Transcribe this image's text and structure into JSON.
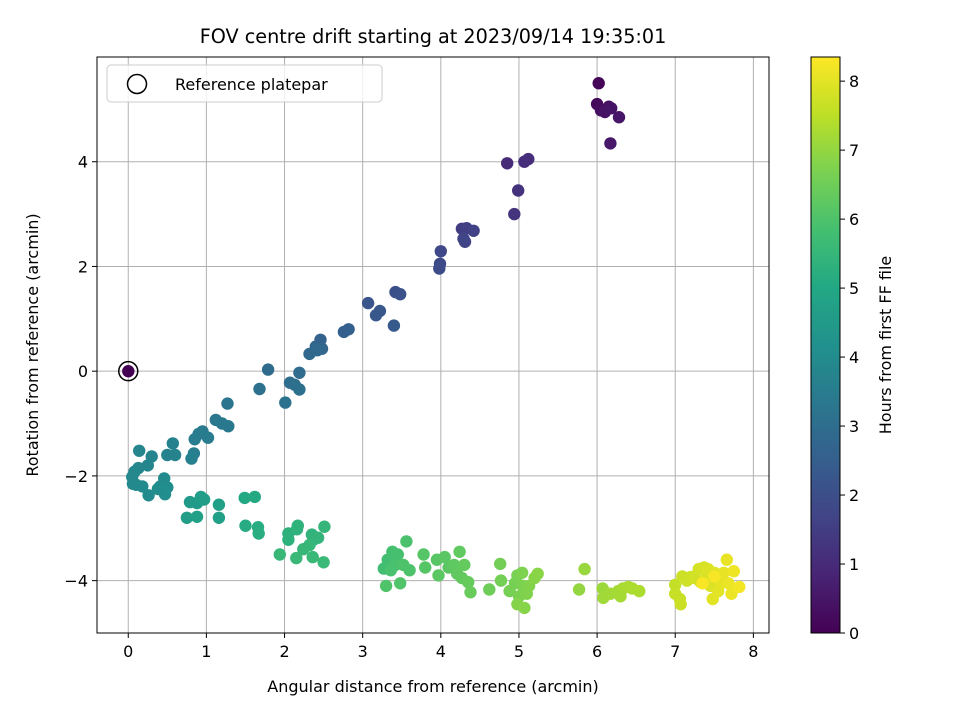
{
  "chart_data": {
    "type": "scatter",
    "title": "FOV centre drift starting at 2023/09/14 19:35:01",
    "xlabel": "Angular distance from reference (arcmin)",
    "ylabel": "Rotation from reference (arcmin)",
    "xlim": [
      -0.4,
      8.2
    ],
    "ylim": [
      -5.0,
      6.0
    ],
    "xticks": [
      0,
      1,
      2,
      3,
      4,
      5,
      6,
      7,
      8
    ],
    "yticks": [
      -4,
      -2,
      0,
      2,
      4
    ],
    "grid": true,
    "legend": {
      "placement": "top-left",
      "entries": [
        "Reference platepar"
      ]
    },
    "reference_point": {
      "x": 0,
      "y": 0,
      "hours": 0
    },
    "colorbar": {
      "label": "Hours from first FF file",
      "min": 0,
      "max": 8.35,
      "ticks": [
        0,
        1,
        2,
        3,
        4,
        5,
        6,
        7,
        8
      ],
      "colormap": "viridis"
    },
    "points": [
      {
        "x": 0.0,
        "y": 0.0,
        "h": 0.0
      },
      {
        "x": 6.02,
        "y": 5.5,
        "h": 0.1
      },
      {
        "x": 6.0,
        "y": 5.1,
        "h": 0.2
      },
      {
        "x": 6.05,
        "y": 4.98,
        "h": 0.3
      },
      {
        "x": 6.15,
        "y": 5.05,
        "h": 0.35
      },
      {
        "x": 6.1,
        "y": 4.95,
        "h": 0.4
      },
      {
        "x": 6.18,
        "y": 5.02,
        "h": 0.45
      },
      {
        "x": 6.28,
        "y": 4.85,
        "h": 0.5
      },
      {
        "x": 6.17,
        "y": 4.35,
        "h": 0.55
      },
      {
        "x": 4.85,
        "y": 3.97,
        "h": 1.0
      },
      {
        "x": 5.07,
        "y": 4.0,
        "h": 1.05
      },
      {
        "x": 5.12,
        "y": 4.05,
        "h": 1.1
      },
      {
        "x": 4.99,
        "y": 3.45,
        "h": 1.2
      },
      {
        "x": 4.94,
        "y": 3.0,
        "h": 1.25
      },
      {
        "x": 4.27,
        "y": 2.72,
        "h": 1.5
      },
      {
        "x": 4.33,
        "y": 2.73,
        "h": 1.55
      },
      {
        "x": 4.42,
        "y": 2.68,
        "h": 1.6
      },
      {
        "x": 4.31,
        "y": 2.47,
        "h": 1.65
      },
      {
        "x": 4.29,
        "y": 2.53,
        "h": 1.7
      },
      {
        "x": 4.0,
        "y": 2.29,
        "h": 1.8
      },
      {
        "x": 3.99,
        "y": 2.05,
        "h": 1.85
      },
      {
        "x": 3.98,
        "y": 1.96,
        "h": 1.9
      },
      {
        "x": 3.42,
        "y": 1.51,
        "h": 2.05
      },
      {
        "x": 3.48,
        "y": 1.47,
        "h": 2.1
      },
      {
        "x": 3.07,
        "y": 1.3,
        "h": 2.2
      },
      {
        "x": 3.17,
        "y": 1.07,
        "h": 2.25
      },
      {
        "x": 3.22,
        "y": 1.15,
        "h": 2.3
      },
      {
        "x": 3.4,
        "y": 0.87,
        "h": 2.35
      },
      {
        "x": 2.76,
        "y": 0.75,
        "h": 2.5
      },
      {
        "x": 2.82,
        "y": 0.8,
        "h": 2.55
      },
      {
        "x": 2.46,
        "y": 0.6,
        "h": 2.65
      },
      {
        "x": 2.4,
        "y": 0.47,
        "h": 2.7
      },
      {
        "x": 2.48,
        "y": 0.43,
        "h": 2.75
      },
      {
        "x": 2.32,
        "y": 0.33,
        "h": 2.8
      },
      {
        "x": 2.42,
        "y": 0.4,
        "h": 2.82
      },
      {
        "x": 1.79,
        "y": 0.03,
        "h": 2.9
      },
      {
        "x": 2.19,
        "y": -0.03,
        "h": 2.95
      },
      {
        "x": 2.07,
        "y": -0.22,
        "h": 3.0
      },
      {
        "x": 2.13,
        "y": -0.26,
        "h": 3.05
      },
      {
        "x": 2.19,
        "y": -0.35,
        "h": 3.08
      },
      {
        "x": 1.68,
        "y": -0.34,
        "h": 3.1
      },
      {
        "x": 2.01,
        "y": -0.6,
        "h": 3.15
      },
      {
        "x": 1.27,
        "y": -0.62,
        "h": 3.25
      },
      {
        "x": 1.12,
        "y": -0.93,
        "h": 3.3
      },
      {
        "x": 1.2,
        "y": -1.0,
        "h": 3.32
      },
      {
        "x": 1.28,
        "y": -1.05,
        "h": 3.35
      },
      {
        "x": 0.95,
        "y": -1.15,
        "h": 3.4
      },
      {
        "x": 1.02,
        "y": -1.27,
        "h": 3.45
      },
      {
        "x": 0.9,
        "y": -1.2,
        "h": 3.48
      },
      {
        "x": 0.85,
        "y": -1.3,
        "h": 3.5
      },
      {
        "x": 0.84,
        "y": -1.57,
        "h": 3.55
      },
      {
        "x": 0.81,
        "y": -1.67,
        "h": 3.6
      },
      {
        "x": 0.57,
        "y": -1.38,
        "h": 3.65
      },
      {
        "x": 0.5,
        "y": -1.6,
        "h": 3.7
      },
      {
        "x": 0.6,
        "y": -1.6,
        "h": 3.72
      },
      {
        "x": 0.3,
        "y": -1.63,
        "h": 3.75
      },
      {
        "x": 0.25,
        "y": -1.8,
        "h": 3.78
      },
      {
        "x": 0.14,
        "y": -1.52,
        "h": 3.8
      },
      {
        "x": 0.13,
        "y": -1.85,
        "h": 3.82
      },
      {
        "x": 0.08,
        "y": -1.92,
        "h": 3.85
      },
      {
        "x": 0.05,
        "y": -2.02,
        "h": 3.88
      },
      {
        "x": 0.06,
        "y": -2.15,
        "h": 3.9
      },
      {
        "x": 0.1,
        "y": -2.17,
        "h": 3.92
      },
      {
        "x": 0.18,
        "y": -2.2,
        "h": 3.95
      },
      {
        "x": 0.26,
        "y": -2.37,
        "h": 3.98
      },
      {
        "x": 0.46,
        "y": -2.05,
        "h": 4.0
      },
      {
        "x": 0.41,
        "y": -2.2,
        "h": 4.02
      },
      {
        "x": 0.5,
        "y": -2.22,
        "h": 4.05
      },
      {
        "x": 0.47,
        "y": -2.35,
        "h": 4.08
      },
      {
        "x": 0.38,
        "y": -2.25,
        "h": 4.1
      },
      {
        "x": 0.79,
        "y": -2.5,
        "h": 4.5
      },
      {
        "x": 0.88,
        "y": -2.52,
        "h": 4.55
      },
      {
        "x": 0.97,
        "y": -2.45,
        "h": 4.6
      },
      {
        "x": 0.93,
        "y": -2.4,
        "h": 4.62
      },
      {
        "x": 0.75,
        "y": -2.8,
        "h": 4.65
      },
      {
        "x": 0.88,
        "y": -2.78,
        "h": 4.68
      },
      {
        "x": 1.16,
        "y": -2.55,
        "h": 4.7
      },
      {
        "x": 1.16,
        "y": -2.8,
        "h": 4.72
      },
      {
        "x": 1.49,
        "y": -2.42,
        "h": 5.0
      },
      {
        "x": 1.62,
        "y": -2.4,
        "h": 5.05
      },
      {
        "x": 1.5,
        "y": -2.95,
        "h": 5.1
      },
      {
        "x": 1.66,
        "y": -2.98,
        "h": 5.15
      },
      {
        "x": 1.67,
        "y": -3.1,
        "h": 5.2
      },
      {
        "x": 2.05,
        "y": -3.1,
        "h": 5.3
      },
      {
        "x": 2.05,
        "y": -3.22,
        "h": 5.32
      },
      {
        "x": 2.16,
        "y": -3.02,
        "h": 5.35
      },
      {
        "x": 2.17,
        "y": -2.95,
        "h": 5.38
      },
      {
        "x": 2.35,
        "y": -3.12,
        "h": 5.4
      },
      {
        "x": 2.37,
        "y": -3.22,
        "h": 5.42
      },
      {
        "x": 2.43,
        "y": -3.18,
        "h": 5.45
      },
      {
        "x": 2.51,
        "y": -2.97,
        "h": 5.48
      },
      {
        "x": 2.32,
        "y": -3.32,
        "h": 5.5
      },
      {
        "x": 2.24,
        "y": -3.4,
        "h": 5.52
      },
      {
        "x": 1.94,
        "y": -3.5,
        "h": 5.55
      },
      {
        "x": 2.15,
        "y": -3.57,
        "h": 5.58
      },
      {
        "x": 2.36,
        "y": -3.55,
        "h": 5.6
      },
      {
        "x": 2.5,
        "y": -3.65,
        "h": 5.62
      },
      {
        "x": 3.27,
        "y": -3.77,
        "h": 5.8
      },
      {
        "x": 3.32,
        "y": -3.6,
        "h": 5.82
      },
      {
        "x": 3.38,
        "y": -3.45,
        "h": 5.85
      },
      {
        "x": 3.45,
        "y": -3.5,
        "h": 5.88
      },
      {
        "x": 3.42,
        "y": -3.7,
        "h": 5.9
      },
      {
        "x": 3.36,
        "y": -3.8,
        "h": 5.92
      },
      {
        "x": 3.56,
        "y": -3.25,
        "h": 5.95
      },
      {
        "x": 3.52,
        "y": -3.7,
        "h": 5.98
      },
      {
        "x": 3.6,
        "y": -3.8,
        "h": 6.0
      },
      {
        "x": 3.3,
        "y": -4.1,
        "h": 6.02
      },
      {
        "x": 3.48,
        "y": -4.05,
        "h": 6.05
      },
      {
        "x": 3.78,
        "y": -3.5,
        "h": 6.1
      },
      {
        "x": 3.8,
        "y": -3.75,
        "h": 6.12
      },
      {
        "x": 3.95,
        "y": -3.6,
        "h": 6.15
      },
      {
        "x": 4.05,
        "y": -3.55,
        "h": 6.18
      },
      {
        "x": 3.97,
        "y": -3.9,
        "h": 6.2
      },
      {
        "x": 4.1,
        "y": -3.75,
        "h": 6.22
      },
      {
        "x": 4.17,
        "y": -3.7,
        "h": 6.25
      },
      {
        "x": 4.24,
        "y": -3.45,
        "h": 6.28
      },
      {
        "x": 4.21,
        "y": -3.87,
        "h": 6.3
      },
      {
        "x": 4.27,
        "y": -3.95,
        "h": 6.32
      },
      {
        "x": 4.3,
        "y": -3.7,
        "h": 6.35
      },
      {
        "x": 4.35,
        "y": -4.03,
        "h": 6.38
      },
      {
        "x": 4.38,
        "y": -4.22,
        "h": 6.4
      },
      {
        "x": 4.62,
        "y": -4.17,
        "h": 6.5
      },
      {
        "x": 4.76,
        "y": -3.68,
        "h": 6.55
      },
      {
        "x": 4.77,
        "y": -4.0,
        "h": 6.58
      },
      {
        "x": 4.88,
        "y": -4.2,
        "h": 6.6
      },
      {
        "x": 4.95,
        "y": -4.05,
        "h": 6.62
      },
      {
        "x": 4.98,
        "y": -3.9,
        "h": 6.65
      },
      {
        "x": 5.0,
        "y": -4.3,
        "h": 6.68
      },
      {
        "x": 5.05,
        "y": -4.1,
        "h": 6.7
      },
      {
        "x": 5.04,
        "y": -3.85,
        "h": 6.72
      },
      {
        "x": 5.1,
        "y": -4.25,
        "h": 6.75
      },
      {
        "x": 5.13,
        "y": -4.1,
        "h": 6.78
      },
      {
        "x": 4.98,
        "y": -4.45,
        "h": 6.8
      },
      {
        "x": 5.07,
        "y": -4.52,
        "h": 6.82
      },
      {
        "x": 5.2,
        "y": -3.95,
        "h": 6.85
      },
      {
        "x": 5.24,
        "y": -3.87,
        "h": 6.88
      },
      {
        "x": 5.77,
        "y": -4.17,
        "h": 7.0
      },
      {
        "x": 5.84,
        "y": -3.78,
        "h": 7.05
      },
      {
        "x": 6.07,
        "y": -4.15,
        "h": 7.1
      },
      {
        "x": 6.1,
        "y": -4.22,
        "h": 7.12
      },
      {
        "x": 6.08,
        "y": -4.33,
        "h": 7.15
      },
      {
        "x": 6.17,
        "y": -4.25,
        "h": 7.18
      },
      {
        "x": 6.27,
        "y": -4.2,
        "h": 7.2
      },
      {
        "x": 6.3,
        "y": -4.3,
        "h": 7.22
      },
      {
        "x": 6.33,
        "y": -4.15,
        "h": 7.25
      },
      {
        "x": 6.4,
        "y": -4.12,
        "h": 7.28
      },
      {
        "x": 6.45,
        "y": -4.15,
        "h": 7.3
      },
      {
        "x": 6.54,
        "y": -4.2,
        "h": 7.32
      },
      {
        "x": 7.0,
        "y": -4.08,
        "h": 7.6
      },
      {
        "x": 7.0,
        "y": -4.25,
        "h": 7.62
      },
      {
        "x": 7.06,
        "y": -4.35,
        "h": 7.65
      },
      {
        "x": 7.07,
        "y": -4.45,
        "h": 7.68
      },
      {
        "x": 7.09,
        "y": -3.92,
        "h": 7.7
      },
      {
        "x": 7.15,
        "y": -4.0,
        "h": 7.72
      },
      {
        "x": 7.2,
        "y": -3.93,
        "h": 7.75
      },
      {
        "x": 7.25,
        "y": -3.95,
        "h": 7.78
      },
      {
        "x": 7.32,
        "y": -4.02,
        "h": 7.8
      },
      {
        "x": 7.3,
        "y": -3.78,
        "h": 7.82
      },
      {
        "x": 7.37,
        "y": -3.75,
        "h": 7.85
      },
      {
        "x": 7.4,
        "y": -3.95,
        "h": 7.88
      },
      {
        "x": 7.45,
        "y": -4.1,
        "h": 7.9
      },
      {
        "x": 7.42,
        "y": -3.78,
        "h": 7.92
      },
      {
        "x": 7.5,
        "y": -3.85,
        "h": 7.95
      },
      {
        "x": 7.48,
        "y": -4.35,
        "h": 7.98
      },
      {
        "x": 7.55,
        "y": -4.2,
        "h": 8.0
      },
      {
        "x": 7.58,
        "y": -4.05,
        "h": 8.02
      },
      {
        "x": 7.62,
        "y": -3.85,
        "h": 8.05
      },
      {
        "x": 7.66,
        "y": -3.6,
        "h": 8.08
      },
      {
        "x": 7.68,
        "y": -4.05,
        "h": 8.1
      },
      {
        "x": 7.72,
        "y": -4.25,
        "h": 8.12
      },
      {
        "x": 7.75,
        "y": -3.82,
        "h": 8.15
      },
      {
        "x": 7.82,
        "y": -4.12,
        "h": 8.2
      },
      {
        "x": 7.5,
        "y": -3.92,
        "h": 8.25
      },
      {
        "x": 7.35,
        "y": -4.05,
        "h": 8.3
      }
    ]
  }
}
